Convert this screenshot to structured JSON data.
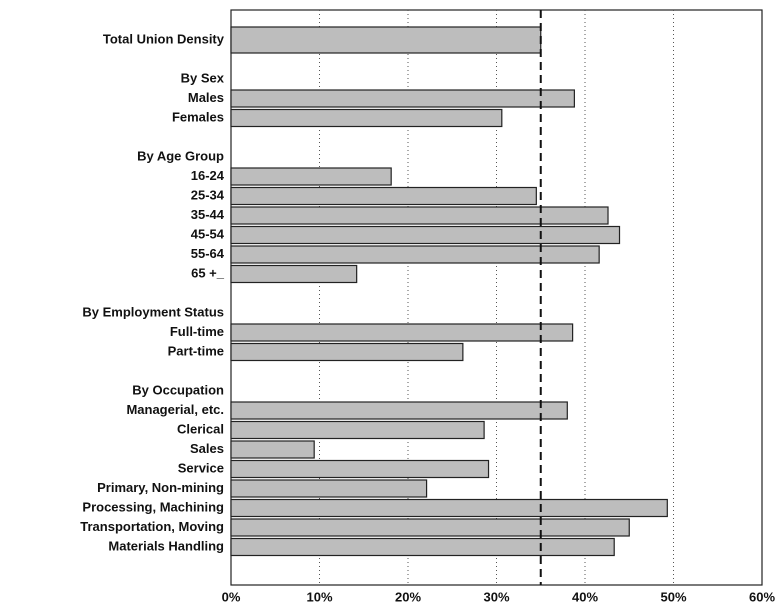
{
  "chart_data": {
    "type": "bar",
    "orientation": "horizontal",
    "categories": [
      "Total Union Density",
      null,
      "By Sex",
      "Males",
      "Females",
      null,
      "By Age Group",
      "16-24",
      "25-34",
      "35-44",
      "45-54",
      "55-64",
      "65 +_",
      null,
      "By Employment Status",
      "Full-time",
      "Part-time",
      null,
      "By Occupation",
      "Managerial, etc.",
      "Clerical",
      "Sales",
      "Service",
      "Primary, Non-mining",
      "Processing, Machining",
      "Transportation, Moving",
      "Materials Handling"
    ],
    "values": [
      35,
      null,
      null,
      38.8,
      30.6,
      null,
      null,
      18.1,
      34.5,
      42.6,
      43.9,
      41.6,
      14.2,
      null,
      null,
      38.6,
      26.2,
      null,
      null,
      38.0,
      28.6,
      9.4,
      29.1,
      22.1,
      49.3,
      45.0,
      43.3
    ],
    "color": "#bdbdbd",
    "xlim": [
      0,
      60
    ],
    "xticks": [
      {
        "value": 0,
        "label": "0%"
      },
      {
        "value": 10,
        "label": "10%"
      },
      {
        "value": 20,
        "label": "20%"
      },
      {
        "value": 30,
        "label": "30%"
      },
      {
        "value": 40,
        "label": "40%"
      },
      {
        "value": 50,
        "label": "50%"
      },
      {
        "value": 60,
        "label": "60%"
      }
    ],
    "reference_line": 35,
    "grid": true
  }
}
